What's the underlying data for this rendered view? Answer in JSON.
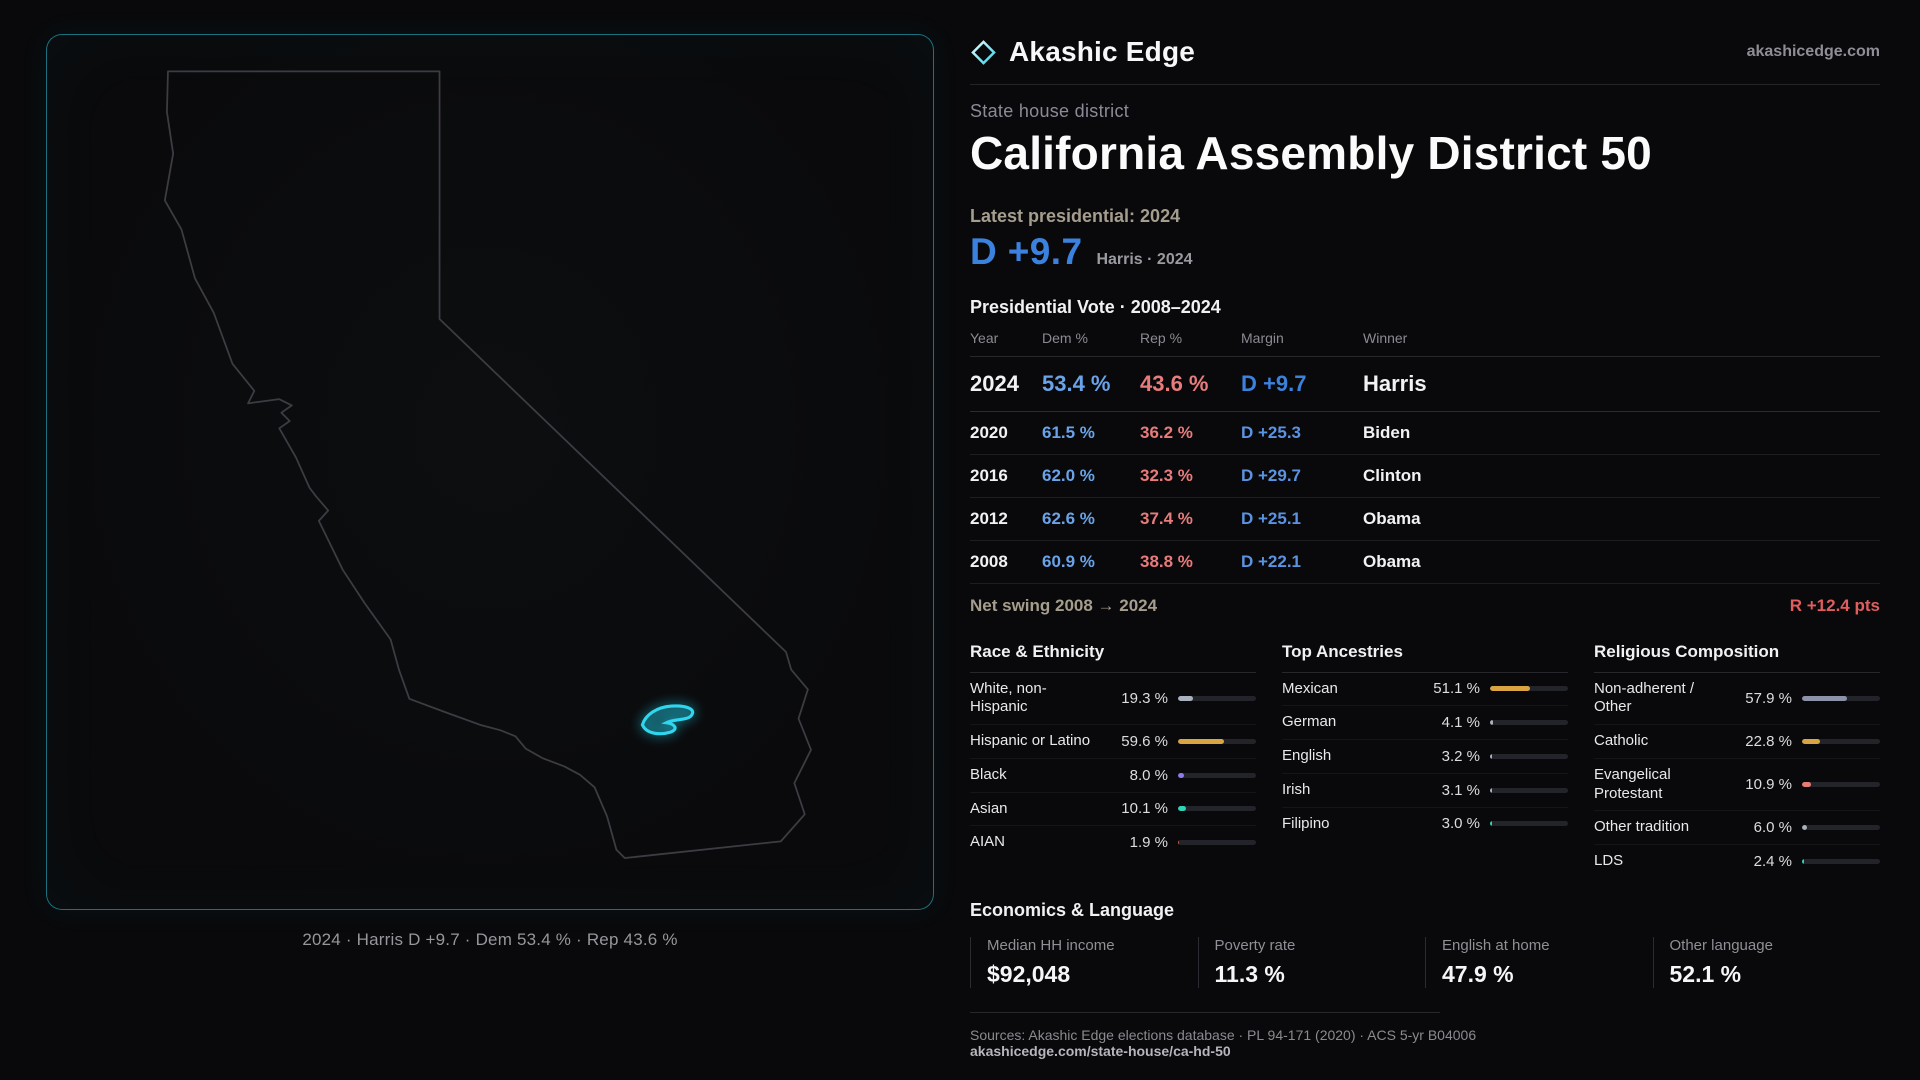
{
  "colors": {
    "accent_cyan": "#2fd6ee",
    "dem_blue": "#6aa3e8",
    "dem_blue_bright": "#3b82de",
    "rep_red": "#e87b7b",
    "swing_red": "#e25d5d",
    "text_tan": "#a59d8d",
    "text_gray": "#96969c"
  },
  "map": {
    "caption": "2024 · Harris D +9.7 · Dem 53.4 % · Rep 43.6 %",
    "region": "California",
    "highlight": "Assembly District 50"
  },
  "header": {
    "brand": "Akashic Edge",
    "site": "akashicedge.com",
    "logo_icon": "diamond-outline-icon",
    "kicker": "State house district",
    "title": "California Assembly District 50",
    "latest_label": "Latest presidential: 2024",
    "headline_margin": "D +9.7",
    "headline_detail": "Harris · 2024"
  },
  "vote_table": {
    "title": "Presidential Vote · 2008–2024",
    "columns": [
      "Year",
      "Dem %",
      "Rep %",
      "Margin",
      "Winner"
    ],
    "rows": [
      {
        "year": "2024",
        "dem": "53.4 %",
        "rep": "43.6 %",
        "margin": "D +9.7",
        "winner": "Harris",
        "featured": true
      },
      {
        "year": "2020",
        "dem": "61.5 %",
        "rep": "36.2 %",
        "margin": "D +25.3",
        "winner": "Biden",
        "featured": false
      },
      {
        "year": "2016",
        "dem": "62.0 %",
        "rep": "32.3 %",
        "margin": "D +29.7",
        "winner": "Clinton",
        "featured": false
      },
      {
        "year": "2012",
        "dem": "62.6 %",
        "rep": "37.4 %",
        "margin": "D +25.1",
        "winner": "Obama",
        "featured": false
      },
      {
        "year": "2008",
        "dem": "60.9 %",
        "rep": "38.8 %",
        "margin": "D +22.1",
        "winner": "Obama",
        "featured": false
      }
    ],
    "net_swing_label": "Net swing 2008 → 2024",
    "net_swing_value": "R +12.4 pts"
  },
  "demographics": [
    {
      "title": "Race & Ethnicity",
      "rows": [
        {
          "label": "White, non-Hispanic",
          "value": "19.3 %",
          "pct": 19.3,
          "color": "#aab2bf"
        },
        {
          "label": "Hispanic or Latino",
          "value": "59.6 %",
          "pct": 59.6,
          "color": "#d9a441"
        },
        {
          "label": "Black",
          "value": "8.0 %",
          "pct": 8.0,
          "color": "#8b7cf0"
        },
        {
          "label": "Asian",
          "value": "10.1 %",
          "pct": 10.1,
          "color": "#2fd4b5"
        },
        {
          "label": "AIAN",
          "value": "1.9 %",
          "pct": 1.9,
          "color": "#c2593c"
        }
      ]
    },
    {
      "title": "Top Ancestries",
      "rows": [
        {
          "label": "Mexican",
          "value": "51.1 %",
          "pct": 51.1,
          "color": "#d9a441"
        },
        {
          "label": "German",
          "value": "4.1 %",
          "pct": 4.1,
          "color": "#a9afbb"
        },
        {
          "label": "English",
          "value": "3.2 %",
          "pct": 3.2,
          "color": "#a9afbb"
        },
        {
          "label": "Irish",
          "value": "3.1 %",
          "pct": 3.1,
          "color": "#a9afbb"
        },
        {
          "label": "Filipino",
          "value": "3.0 %",
          "pct": 3.0,
          "color": "#2fd4b5"
        }
      ]
    },
    {
      "title": "Religious Composition",
      "rows": [
        {
          "label": "Non-adherent / Other",
          "value": "57.9 %",
          "pct": 57.9,
          "color": "#8c93a6"
        },
        {
          "label": "Catholic",
          "value": "22.8 %",
          "pct": 22.8,
          "color": "#d9a441"
        },
        {
          "label": "Evangelical Protestant",
          "value": "10.9 %",
          "pct": 10.9,
          "color": "#e57d72"
        },
        {
          "label": "Other tradition",
          "value": "6.0 %",
          "pct": 6.0,
          "color": "#a9afbb"
        },
        {
          "label": "LDS",
          "value": "2.4 %",
          "pct": 2.4,
          "color": "#2fd4b5"
        }
      ]
    }
  ],
  "economics": {
    "title": "Economics & Language",
    "stats": [
      {
        "label": "Median HH income",
        "value": "$92,048"
      },
      {
        "label": "Poverty rate",
        "value": "11.3 %"
      },
      {
        "label": "English at home",
        "value": "47.9 %"
      },
      {
        "label": "Other language",
        "value": "52.1 %"
      }
    ]
  },
  "footer": {
    "sources": "Sources: Akashic Edge elections database · PL 94-171 (2020) · ACS 5-yr B04006",
    "permalink": "akashicedge.com/state-house/ca-hd-50"
  },
  "chart_data": [
    {
      "type": "table",
      "title": "Presidential Vote · 2008–2024",
      "columns": [
        "Year",
        "Dem %",
        "Rep %",
        "Margin",
        "Winner"
      ],
      "rows": [
        [
          2024,
          53.4,
          43.6,
          "D +9.7",
          "Harris"
        ],
        [
          2020,
          61.5,
          36.2,
          "D +25.3",
          "Biden"
        ],
        [
          2016,
          62.0,
          32.3,
          "D +29.7",
          "Clinton"
        ],
        [
          2012,
          62.6,
          37.4,
          "D +25.1",
          "Obama"
        ],
        [
          2008,
          60.9,
          38.8,
          "D +22.1",
          "Obama"
        ]
      ],
      "note": "Net swing 2008 → 2024: R +12.4 pts"
    },
    {
      "type": "bar",
      "title": "Race & Ethnicity",
      "categories": [
        "White, non-Hispanic",
        "Hispanic or Latino",
        "Black",
        "Asian",
        "AIAN"
      ],
      "values": [
        19.3,
        59.6,
        8.0,
        10.1,
        1.9
      ],
      "xlabel": "",
      "ylabel": "",
      "xlim": [
        0,
        100
      ],
      "unit": "%",
      "orientation": "horizontal"
    },
    {
      "type": "bar",
      "title": "Top Ancestries",
      "categories": [
        "Mexican",
        "German",
        "English",
        "Irish",
        "Filipino"
      ],
      "values": [
        51.1,
        4.1,
        3.2,
        3.1,
        3.0
      ],
      "xlabel": "",
      "ylabel": "",
      "xlim": [
        0,
        100
      ],
      "unit": "%",
      "orientation": "horizontal"
    },
    {
      "type": "bar",
      "title": "Religious Composition",
      "categories": [
        "Non-adherent / Other",
        "Catholic",
        "Evangelical Protestant",
        "Other tradition",
        "LDS"
      ],
      "values": [
        57.9,
        22.8,
        10.9,
        6.0,
        2.4
      ],
      "xlabel": "",
      "ylabel": "",
      "xlim": [
        0,
        100
      ],
      "unit": "%",
      "orientation": "horizontal"
    }
  ]
}
